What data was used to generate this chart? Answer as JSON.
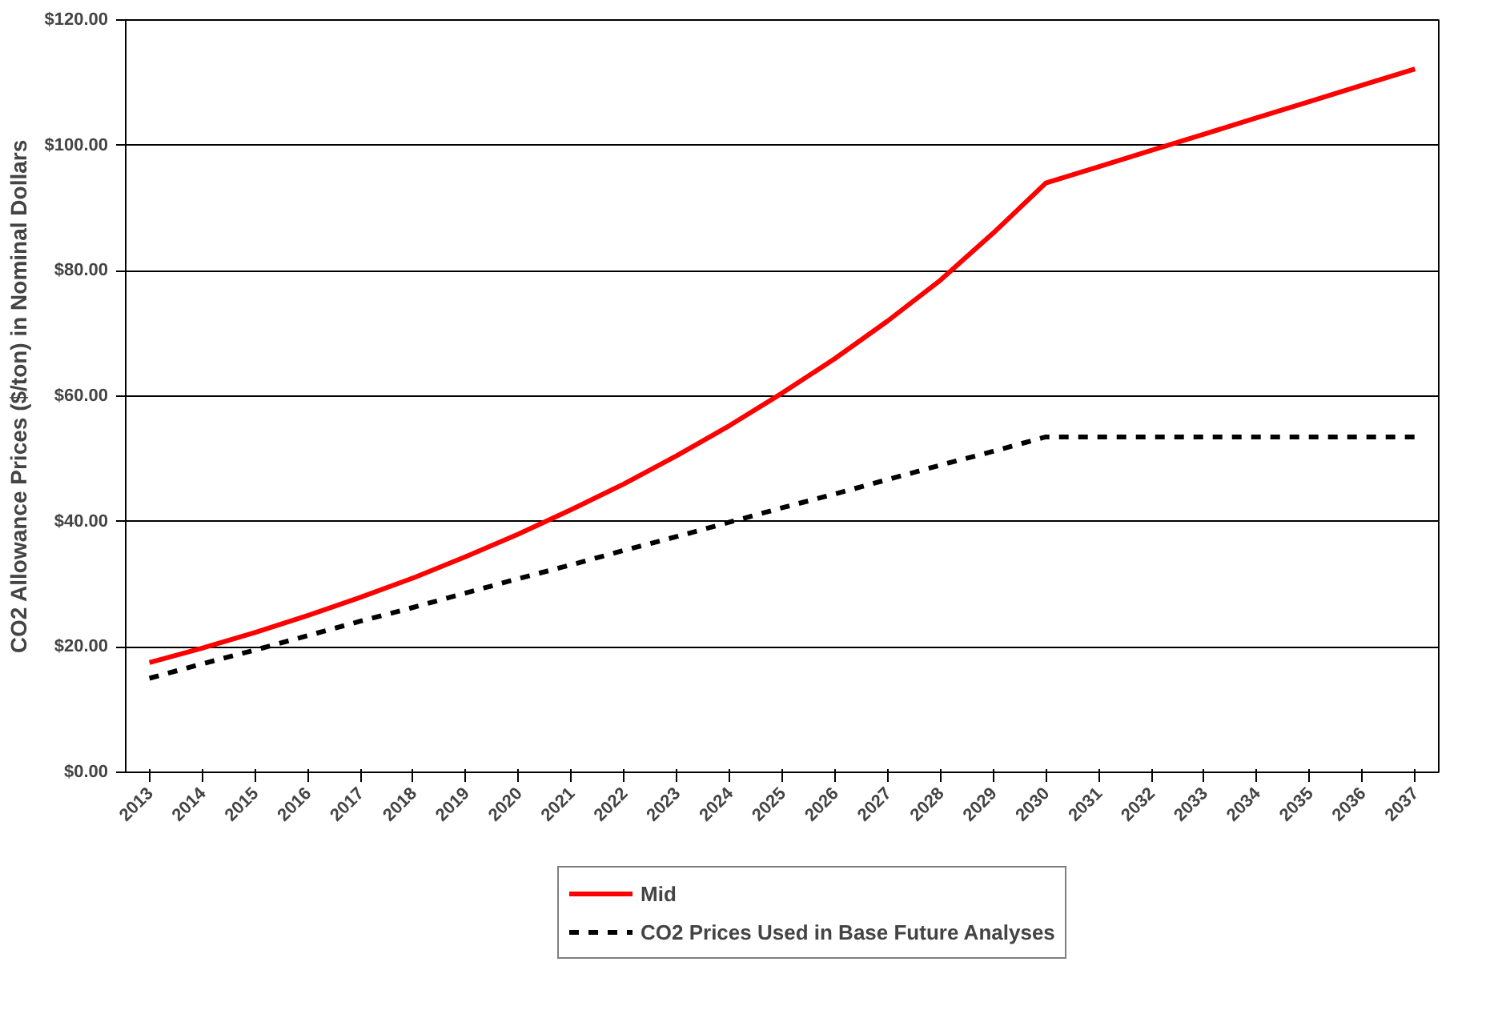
{
  "chart_data": {
    "type": "line",
    "ylabel": "CO2 Allowance Prices ($/ton) in Nominal Dollars",
    "categories": [
      "2013",
      "2014",
      "2015",
      "2016",
      "2017",
      "2018",
      "2019",
      "2020",
      "2021",
      "2022",
      "2023",
      "2024",
      "2025",
      "2026",
      "2027",
      "2028",
      "2029",
      "2030",
      "2031",
      "2032",
      "2033",
      "2034",
      "2035",
      "2036",
      "2037"
    ],
    "ylim": [
      0,
      120
    ],
    "yticks": [
      {
        "value": 0,
        "label": "$0.00"
      },
      {
        "value": 20,
        "label": "$20.00"
      },
      {
        "value": 40,
        "label": "$40.00"
      },
      {
        "value": 60,
        "label": "$60.00"
      },
      {
        "value": 80,
        "label": "$80.00"
      },
      {
        "value": 100,
        "label": "$100.00"
      },
      {
        "value": 120,
        "label": "$120.00"
      }
    ],
    "grid": "y",
    "legend": "bottom",
    "series": [
      {
        "name": "Mid",
        "color": "#ff0000",
        "line_style": "solid",
        "values": [
          17.5,
          19.8,
          22.3,
          25,
          27.9,
          31,
          34.4,
          38,
          41.9,
          46,
          50.5,
          55.3,
          60.5,
          66,
          72,
          78.5,
          86,
          94,
          96.6,
          99.2,
          101.8,
          104.4,
          107,
          109.6,
          112.2
        ]
      },
      {
        "name": "CO2 Prices Used in Base Future Analyses",
        "color": "#000000",
        "line_style": "dashed",
        "values": [
          15,
          17.3,
          19.5,
          21.8,
          24.1,
          26.3,
          28.6,
          30.9,
          33.1,
          35.4,
          37.6,
          39.9,
          42.2,
          44.4,
          46.7,
          49,
          51.2,
          53.5,
          53.5,
          53.5,
          53.5,
          53.5,
          53.5,
          53.5,
          53.5
        ]
      }
    ]
  }
}
